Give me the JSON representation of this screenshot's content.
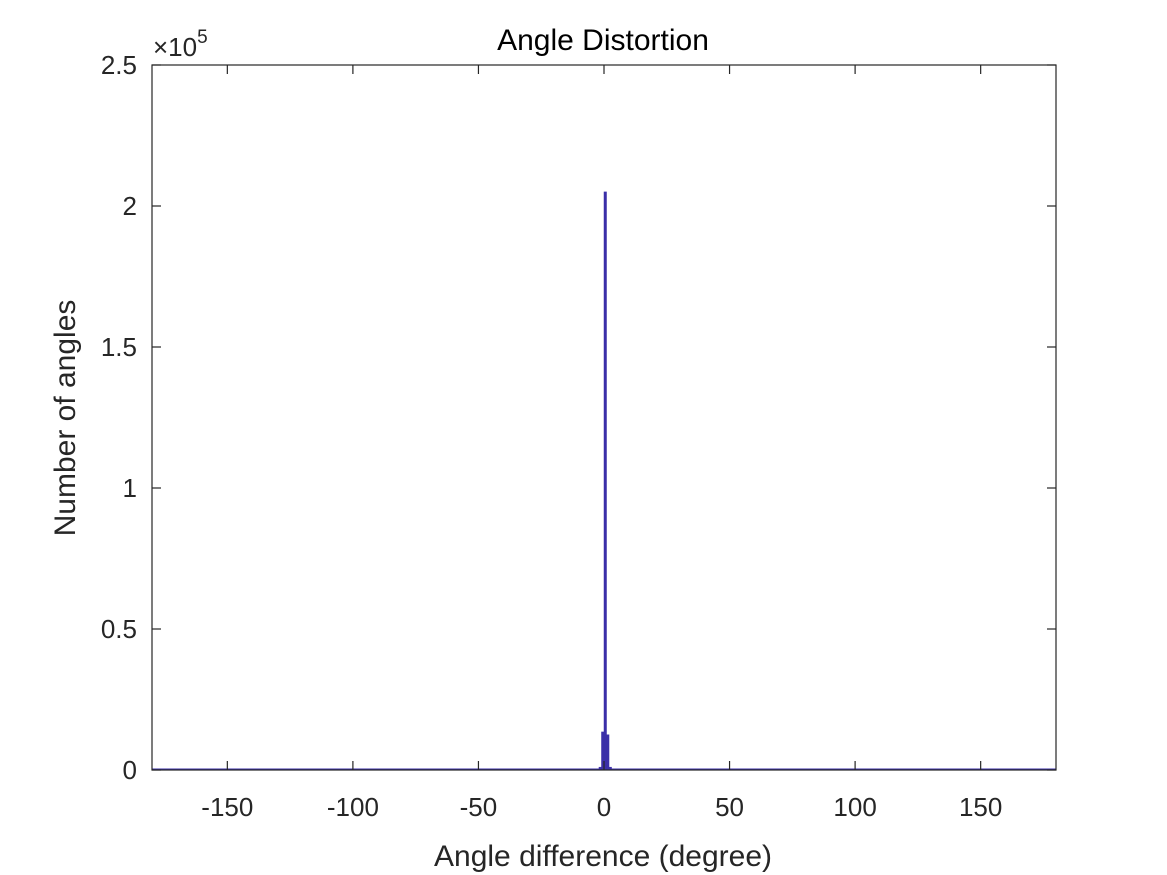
{
  "chart_data": {
    "type": "bar",
    "title": "Angle Distortion",
    "xlabel": "Angle difference (degree)",
    "ylabel": "Number of angles",
    "y_exponent_base": "×10",
    "y_exponent_power": "5",
    "xlim": [
      -180,
      180
    ],
    "ylim": [
      0,
      250000
    ],
    "xticks": [
      -150,
      -100,
      -50,
      0,
      50,
      100,
      150
    ],
    "xtick_labels": [
      "-150",
      "-100",
      "-50",
      "0",
      "50",
      "100",
      "150"
    ],
    "yticks": [
      0,
      50000,
      100000,
      150000,
      200000,
      250000
    ],
    "ytick_labels": [
      "0",
      "0.5",
      "1",
      "1.5",
      "2",
      "2.5"
    ],
    "grid": false,
    "bin_width": 1,
    "bins": [
      {
        "x": -2,
        "value": 1000
      },
      {
        "x": -1,
        "value": 13500
      },
      {
        "x": 0,
        "value": 205000
      },
      {
        "x": 1,
        "value": 12500
      },
      {
        "x": 2,
        "value": 1000
      }
    ],
    "bar_color": "#3b2fa8",
    "axis_color": "#262626"
  }
}
